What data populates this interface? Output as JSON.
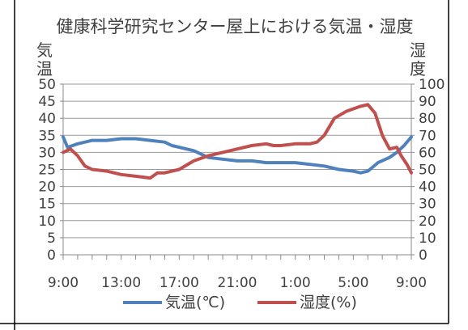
{
  "chart_data": {
    "type": "line",
    "title": "健康科学研究センター屋上における気温・湿度",
    "ylabel_left": [
      "気",
      "温"
    ],
    "ylabel_right": [
      "湿",
      "度"
    ],
    "x_tick_labels": [
      "9:00",
      "13:00",
      "17:00",
      "21:00",
      "1:00",
      "5:00",
      "9:00"
    ],
    "y_left_ticks": [
      0,
      5,
      10,
      15,
      20,
      25,
      30,
      35,
      40,
      45,
      50
    ],
    "y_right_ticks": [
      0,
      10,
      20,
      30,
      40,
      50,
      60,
      70,
      80,
      90,
      100
    ],
    "ylim_left": [
      0,
      50
    ],
    "ylim_right": [
      0,
      100
    ],
    "xlim_hours": [
      0,
      24
    ],
    "grid": true,
    "legend_position": "bottom",
    "series": [
      {
        "name": "気温(℃)",
        "axis": "left",
        "color": "#4f81bd",
        "points": [
          [
            0,
            34.5
          ],
          [
            0.3,
            31.5
          ],
          [
            1,
            32.5
          ],
          [
            2,
            33.5
          ],
          [
            3,
            33.5
          ],
          [
            4,
            34
          ],
          [
            5,
            34
          ],
          [
            6,
            33.5
          ],
          [
            7,
            33
          ],
          [
            7.5,
            32
          ],
          [
            8,
            31.5
          ],
          [
            9,
            30.5
          ],
          [
            10,
            28.5
          ],
          [
            11,
            28
          ],
          [
            12,
            27.5
          ],
          [
            13,
            27.5
          ],
          [
            14,
            27
          ],
          [
            15,
            27
          ],
          [
            16,
            27
          ],
          [
            17,
            26.5
          ],
          [
            18,
            26
          ],
          [
            19,
            25
          ],
          [
            20,
            24.5
          ],
          [
            20.5,
            24
          ],
          [
            21,
            24.5
          ],
          [
            21.7,
            27
          ],
          [
            22.5,
            28.5
          ],
          [
            23,
            30
          ],
          [
            23.5,
            32
          ],
          [
            24,
            34.5
          ]
        ]
      },
      {
        "name": "湿度(%)",
        "axis": "right",
        "color": "#c0504d",
        "points": [
          [
            0,
            60
          ],
          [
            0.5,
            62
          ],
          [
            1,
            58
          ],
          [
            1.5,
            52
          ],
          [
            2,
            50
          ],
          [
            3,
            49
          ],
          [
            3.5,
            48
          ],
          [
            4,
            47
          ],
          [
            5,
            46
          ],
          [
            6,
            45
          ],
          [
            6.5,
            48
          ],
          [
            7,
            48
          ],
          [
            8,
            50
          ],
          [
            9,
            55
          ],
          [
            10,
            58
          ],
          [
            11,
            60
          ],
          [
            12,
            62
          ],
          [
            13,
            64
          ],
          [
            14,
            65
          ],
          [
            14.5,
            64
          ],
          [
            15,
            64
          ],
          [
            16,
            65
          ],
          [
            17,
            65
          ],
          [
            17.5,
            66
          ],
          [
            18,
            70
          ],
          [
            18.7,
            80
          ],
          [
            19.5,
            84
          ],
          [
            20.5,
            87
          ],
          [
            21,
            88
          ],
          [
            21.5,
            83
          ],
          [
            22,
            70
          ],
          [
            22.5,
            62
          ],
          [
            23,
            63
          ],
          [
            23.3,
            58
          ],
          [
            23.7,
            53
          ],
          [
            24,
            48
          ]
        ]
      }
    ]
  }
}
